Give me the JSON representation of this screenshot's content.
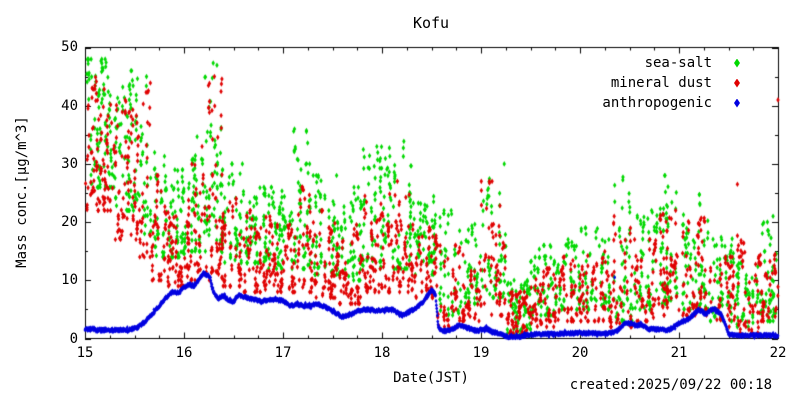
{
  "footer": {
    "created": "created:2025/09/22 00:18"
  },
  "chart_data": {
    "type": "scatter",
    "title": "Kofu",
    "xlabel": "Date(JST)",
    "ylabel": "Mass conc.[µg/m^3]",
    "xlim": [
      15,
      22
    ],
    "ylim": [
      0,
      50
    ],
    "xticks": [
      15,
      16,
      17,
      18,
      19,
      20,
      21,
      22
    ],
    "yticks": [
      0,
      10,
      20,
      30,
      40,
      50
    ],
    "x_minor_step": 0.25,
    "y_minor_step": 5,
    "grid": false,
    "legend_position": "top-right",
    "point_shape": "diamond",
    "series": [
      {
        "name": "sea-salt",
        "color": "#00d800",
        "representation": "binned_envelope",
        "bins": [
          [
            15.0,
            15.3,
            26,
            48,
            100
          ],
          [
            15.3,
            15.55,
            22,
            46,
            85
          ],
          [
            15.55,
            15.68,
            18,
            47,
            30
          ],
          [
            15.68,
            15.82,
            14,
            34,
            40
          ],
          [
            15.82,
            16.05,
            14,
            29,
            70
          ],
          [
            16.05,
            16.2,
            15,
            38,
            45
          ],
          [
            16.2,
            16.38,
            15,
            49,
            60
          ],
          [
            16.38,
            16.6,
            13,
            30,
            60
          ],
          [
            16.6,
            16.85,
            13,
            27,
            70
          ],
          [
            16.85,
            17.1,
            12,
            26,
            70
          ],
          [
            17.1,
            17.3,
            12,
            36,
            55
          ],
          [
            17.3,
            17.55,
            11,
            28,
            70
          ],
          [
            17.55,
            17.8,
            10,
            26,
            70
          ],
          [
            17.8,
            18.05,
            12,
            33,
            70
          ],
          [
            18.05,
            18.3,
            12,
            34,
            70
          ],
          [
            18.3,
            18.55,
            11,
            25,
            70
          ],
          [
            18.55,
            18.8,
            4,
            22,
            50
          ],
          [
            18.8,
            19.0,
            6,
            20,
            50
          ],
          [
            19.0,
            19.25,
            7,
            30,
            60
          ],
          [
            19.25,
            19.5,
            0.5,
            10,
            80
          ],
          [
            19.5,
            19.75,
            4,
            16,
            60
          ],
          [
            19.75,
            20.0,
            5,
            17,
            60
          ],
          [
            20.0,
            20.3,
            5,
            19,
            70
          ],
          [
            20.3,
            20.55,
            3,
            29,
            55
          ],
          [
            20.55,
            20.8,
            5,
            22,
            60
          ],
          [
            20.8,
            21.05,
            6,
            28,
            70
          ],
          [
            21.05,
            21.3,
            5,
            26,
            70
          ],
          [
            21.3,
            21.55,
            3,
            18,
            60
          ],
          [
            21.55,
            21.8,
            2,
            13,
            55
          ],
          [
            21.8,
            22.0,
            3,
            20,
            55
          ]
        ],
        "outliers": [
          [
            21.95,
            21
          ]
        ]
      },
      {
        "name": "mineral dust",
        "color": "#e00000",
        "representation": "binned_envelope",
        "bins": [
          [
            15.0,
            15.3,
            22,
            45,
            100
          ],
          [
            15.3,
            15.55,
            17,
            41,
            85
          ],
          [
            15.55,
            15.68,
            14,
            44,
            30
          ],
          [
            15.68,
            15.82,
            10,
            28,
            40
          ],
          [
            15.82,
            16.05,
            9,
            25,
            70
          ],
          [
            16.05,
            16.2,
            10,
            33,
            45
          ],
          [
            16.2,
            16.38,
            10,
            45,
            60
          ],
          [
            16.38,
            16.6,
            9,
            24,
            60
          ],
          [
            16.6,
            16.85,
            8,
            22,
            70
          ],
          [
            16.85,
            17.1,
            8,
            21,
            70
          ],
          [
            17.1,
            17.3,
            8,
            26,
            55
          ],
          [
            17.3,
            17.55,
            7,
            22,
            70
          ],
          [
            17.55,
            17.8,
            6,
            20,
            70
          ],
          [
            17.8,
            18.05,
            8,
            25,
            70
          ],
          [
            18.05,
            18.3,
            8,
            27,
            70
          ],
          [
            18.3,
            18.55,
            7,
            20,
            70
          ],
          [
            18.55,
            18.8,
            2,
            16,
            50
          ],
          [
            18.8,
            19.0,
            3,
            15,
            50
          ],
          [
            19.0,
            19.25,
            4,
            27,
            60
          ],
          [
            19.25,
            19.5,
            0.3,
            8,
            80
          ],
          [
            19.5,
            19.75,
            2,
            12,
            60
          ],
          [
            19.75,
            20.0,
            3,
            14,
            60
          ],
          [
            20.0,
            20.3,
            3,
            15,
            70
          ],
          [
            20.3,
            20.55,
            2,
            23,
            55
          ],
          [
            20.55,
            20.8,
            3,
            17,
            60
          ],
          [
            20.8,
            21.05,
            4,
            22,
            70
          ],
          [
            21.05,
            21.3,
            4,
            21,
            70
          ],
          [
            21.3,
            21.55,
            2,
            14,
            60
          ],
          [
            21.55,
            21.8,
            1,
            18,
            55
          ],
          [
            21.8,
            22.0,
            3,
            18,
            55
          ]
        ],
        "outliers": [
          [
            21.59,
            26.5
          ],
          [
            22.0,
            41
          ]
        ]
      },
      {
        "name": "anthropogenic",
        "color": "#0000e0",
        "representation": "polyline_band",
        "band_width": 0.5,
        "points": [
          [
            15.0,
            1.6
          ],
          [
            15.2,
            1.4
          ],
          [
            15.45,
            1.5
          ],
          [
            15.52,
            1.8
          ],
          [
            15.6,
            2.8
          ],
          [
            15.7,
            4.6
          ],
          [
            15.8,
            6.6
          ],
          [
            15.88,
            8.0
          ],
          [
            15.95,
            7.9
          ],
          [
            16.0,
            8.8
          ],
          [
            16.05,
            9.3
          ],
          [
            16.1,
            9.0
          ],
          [
            16.15,
            10.1
          ],
          [
            16.2,
            11.2
          ],
          [
            16.26,
            10.6
          ],
          [
            16.3,
            7.9
          ],
          [
            16.34,
            6.9
          ],
          [
            16.4,
            7.3
          ],
          [
            16.45,
            6.6
          ],
          [
            16.5,
            6.3
          ],
          [
            16.55,
            7.4
          ],
          [
            16.62,
            7.1
          ],
          [
            16.7,
            6.7
          ],
          [
            16.8,
            6.4
          ],
          [
            16.9,
            6.7
          ],
          [
            17.0,
            6.5
          ],
          [
            17.07,
            5.7
          ],
          [
            17.15,
            5.8
          ],
          [
            17.25,
            5.5
          ],
          [
            17.35,
            5.9
          ],
          [
            17.42,
            5.5
          ],
          [
            17.5,
            4.7
          ],
          [
            17.6,
            3.7
          ],
          [
            17.68,
            4.1
          ],
          [
            17.75,
            4.7
          ],
          [
            17.85,
            5.0
          ],
          [
            17.95,
            4.8
          ],
          [
            18.05,
            5.0
          ],
          [
            18.12,
            4.9
          ],
          [
            18.2,
            3.9
          ],
          [
            18.28,
            4.6
          ],
          [
            18.35,
            5.3
          ],
          [
            18.42,
            6.4
          ],
          [
            18.5,
            8.3
          ],
          [
            18.54,
            7.6
          ],
          [
            18.57,
            1.8
          ],
          [
            18.62,
            1.2
          ],
          [
            18.7,
            1.5
          ],
          [
            18.78,
            2.3
          ],
          [
            18.85,
            1.9
          ],
          [
            18.95,
            1.3
          ],
          [
            19.05,
            1.7
          ],
          [
            19.12,
            1.1
          ],
          [
            19.2,
            0.8
          ],
          [
            19.28,
            0.25
          ],
          [
            19.4,
            0.3
          ],
          [
            19.5,
            0.7
          ],
          [
            19.7,
            0.8
          ],
          [
            20.0,
            0.9
          ],
          [
            20.3,
            0.9
          ],
          [
            20.38,
            1.4
          ],
          [
            20.45,
            2.6
          ],
          [
            20.5,
            2.8
          ],
          [
            20.56,
            2.2
          ],
          [
            20.62,
            2.4
          ],
          [
            20.7,
            1.6
          ],
          [
            20.8,
            1.6
          ],
          [
            20.9,
            1.5
          ],
          [
            21.0,
            2.6
          ],
          [
            21.1,
            3.4
          ],
          [
            21.2,
            5.0
          ],
          [
            21.27,
            4.2
          ],
          [
            21.35,
            5.2
          ],
          [
            21.42,
            4.3
          ],
          [
            21.47,
            2.5
          ],
          [
            21.5,
            0.8
          ],
          [
            21.6,
            0.5
          ],
          [
            21.8,
            0.55
          ],
          [
            22.0,
            0.5
          ]
        ],
        "outliers": [
          [
            20.35,
            10.5
          ]
        ]
      }
    ]
  }
}
